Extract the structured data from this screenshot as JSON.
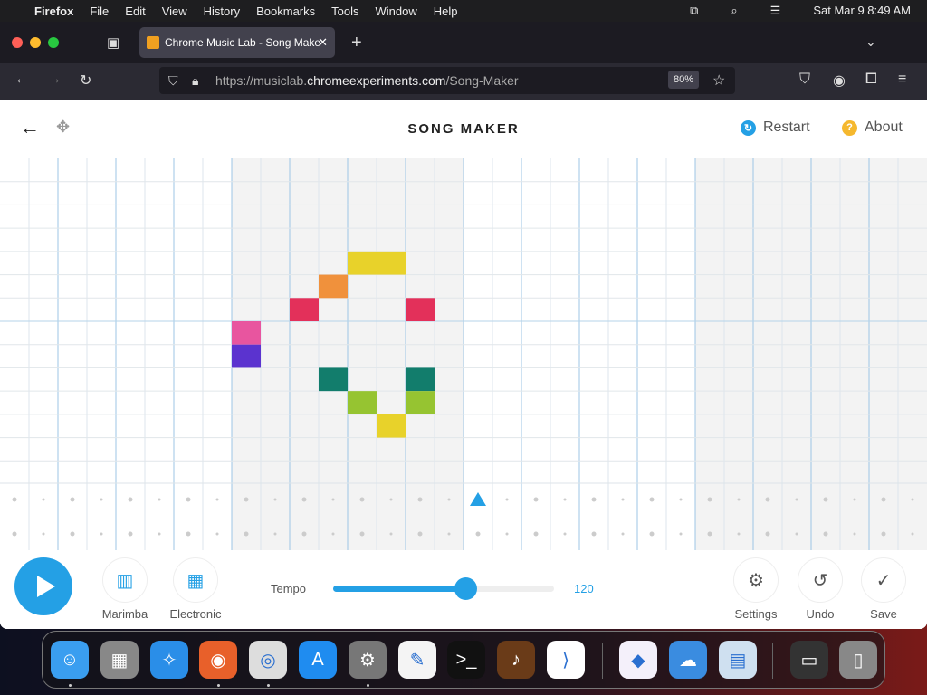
{
  "menubar": {
    "app": "Firefox",
    "items": [
      "File",
      "Edit",
      "View",
      "History",
      "Bookmarks",
      "Tools",
      "Window",
      "Help"
    ],
    "clock": "Sat Mar 9  8:49 AM"
  },
  "browser": {
    "tab_title": "Chrome Music Lab - Song Make",
    "url_prefix": "https://musiclab.",
    "url_domain": "chromeexperiments.com",
    "url_path": "/Song-Maker",
    "zoom": "80%"
  },
  "app": {
    "title": "SONG MAKER",
    "restart": "Restart",
    "about": "About"
  },
  "grid": {
    "columns": 32,
    "rows": 14,
    "beats_per_bar": 8,
    "notes": [
      {
        "step": 12,
        "row": 4,
        "color": "#e8d22a"
      },
      {
        "step": 13,
        "row": 4,
        "color": "#e8d22a"
      },
      {
        "step": 11,
        "row": 5,
        "color": "#f0913c"
      },
      {
        "step": 10,
        "row": 6,
        "color": "#e3305a"
      },
      {
        "step": 14,
        "row": 6,
        "color": "#e3305a"
      },
      {
        "step": 8,
        "row": 7,
        "color": "#e8559f"
      },
      {
        "step": 8,
        "row": 8,
        "color": "#5b33cf"
      },
      {
        "step": 11,
        "row": 9,
        "color": "#127d6c"
      },
      {
        "step": 14,
        "row": 9,
        "color": "#127d6c"
      },
      {
        "step": 12,
        "row": 10,
        "color": "#96c431"
      },
      {
        "step": 14,
        "row": 10,
        "color": "#96c431"
      },
      {
        "step": 13,
        "row": 11,
        "color": "#e8d22a"
      }
    ],
    "playhead_step": 16
  },
  "controls": {
    "marimba": "Marimba",
    "electronic": "Electronic",
    "tempo_label": "Tempo",
    "tempo": "120",
    "tempo_fraction": 0.6,
    "settings": "Settings",
    "undo": "Undo",
    "save": "Save",
    "accent": "#24a0e5"
  },
  "dock": [
    "finder",
    "launchpad",
    "safari",
    "firefox",
    "chrome",
    "app-store",
    "system-settings",
    "textedit",
    "terminal",
    "garageband",
    "vscode",
    "visual-studio",
    "weather",
    "preview",
    "window-thumbnail",
    "trash"
  ]
}
